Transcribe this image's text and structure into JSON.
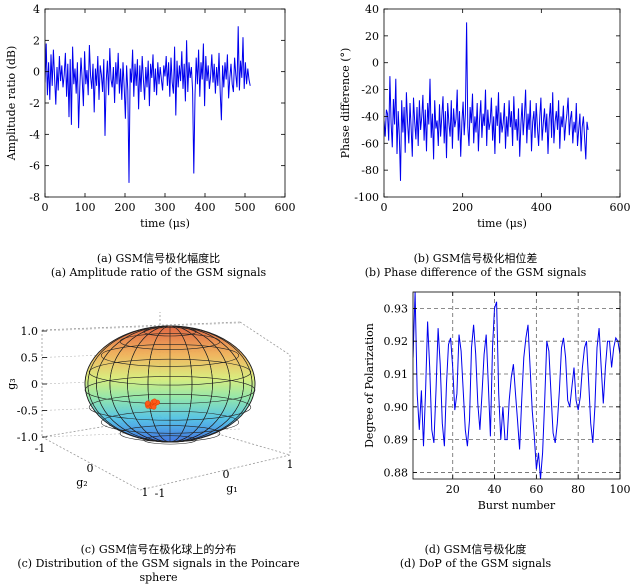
{
  "captions": {
    "a_cn": "(a) GSM信号极化幅度比",
    "a_en": "(a) Amplitude ratio of the GSM signals",
    "b_cn": "(b) GSM信号极化相位差",
    "b_en": "(b) Phase difference of the GSM signals",
    "c_cn": "(c) GSM信号在极化球上的分布",
    "c_en": "(c) Distribution of the GSM signals in the Poincare sphere",
    "d_cn": "(d) GSM信号极化度",
    "d_en": "(d) DoP of the GSM signals"
  },
  "line_color": "#0000ee",
  "chart_data": [
    {
      "id": "a",
      "type": "line",
      "xlabel": "time (μs)",
      "ylabel": "Amplitude ratio (dB)",
      "xlim": [
        0,
        600
      ],
      "ylim": [
        -8,
        4
      ],
      "xticks": [
        0,
        100,
        200,
        300,
        400,
        500,
        600
      ],
      "yticks": [
        -8,
        -6,
        -4,
        -2,
        0,
        2,
        4
      ],
      "grid": false,
      "x_start": 0,
      "x_step": 3,
      "values": [
        -0.7,
        1.8,
        -1.5,
        0.6,
        -1.8,
        1.1,
        -0.9,
        1.4,
        -0.4,
        -2.1,
        0.3,
        -1.2,
        1.0,
        -0.6,
        0.4,
        -1.0,
        -0.2,
        1.2,
        -1.6,
        0.5,
        -2.9,
        0.8,
        -3.4,
        1.6,
        -0.8,
        0.2,
        -1.4,
        0.6,
        -3.6,
        -1.0,
        0.9,
        -0.5,
        -2.2,
        1.3,
        -0.8,
        0.1,
        -1.5,
        1.7,
        -0.3,
        -1.1,
        0.5,
        -2.6,
        0.2,
        -0.9,
        1.0,
        -1.8,
        0.4,
        -0.2,
        -1.3,
        0.8,
        -4.1,
        -0.6,
        0.7,
        -1.5,
        1.5,
        -0.5,
        -1.0,
        0.3,
        -2.0,
        0.6,
        -0.8,
        1.2,
        -1.4,
        0.2,
        -1.8,
        0.6,
        -1.0,
        -3.0,
        0.4,
        -1.2,
        -7.1,
        0.2,
        -0.7,
        1.4,
        -1.6,
        0.5,
        -0.9,
        0.8,
        -2.4,
        0.4,
        -1.3,
        1.0,
        -0.5,
        -1.8,
        0.3,
        -1.0,
        0.7,
        -2.2,
        0.5,
        -0.4,
        1.1,
        -1.3,
        0.2,
        -1.5,
        0.6,
        -0.8,
        0.3,
        -0.5,
        -1.2,
        0.4,
        -0.3,
        1.0,
        -0.9,
        0.6,
        -1.6,
        0.9,
        -0.7,
        -1.4,
        1.6,
        -2.8,
        0.7,
        -1.0,
        0.4,
        -0.6,
        1.3,
        -1.1,
        0.5,
        -1.9,
        2.0,
        -1.3,
        0.6,
        -0.4,
        0.3,
        -1.2,
        -6.5,
        -1.5,
        0.9,
        -0.8,
        1.4,
        -1.6,
        0.6,
        -0.5,
        1.8,
        -2.2,
        1.0,
        -0.6,
        0.4,
        -1.1,
        -0.3,
        1.1,
        -0.7,
        0.5,
        -1.4,
        0.3,
        -0.9,
        1.2,
        -1.3,
        -3.1,
        0.4,
        -1.0,
        0.6,
        -0.5,
        1.1,
        -1.7,
        -0.4,
        0.5,
        -0.8,
        -1.3,
        0.9,
        -0.2,
        -1.0,
        2.9,
        -1.2,
        0.7,
        -0.4,
        2.2,
        -1.1,
        0.6,
        -0.8,
        0.2,
        -0.5,
        -0.9
      ]
    },
    {
      "id": "b",
      "type": "line",
      "xlabel": "time (μs)",
      "ylabel": "Phase difference (°)",
      "xlim": [
        0,
        600
      ],
      "ylim": [
        -100,
        40
      ],
      "xticks": [
        0,
        200,
        400,
        600
      ],
      "yticks": [
        -100,
        -80,
        -60,
        -40,
        -20,
        0,
        20,
        40
      ],
      "grid": false,
      "x_start": 0,
      "x_step": 3,
      "values": [
        -43,
        -55,
        -35,
        -38,
        -58,
        -10,
        -45,
        -63,
        -27,
        -46,
        -12,
        -68,
        -36,
        -54,
        -88,
        -28,
        -52,
        -33,
        -67,
        -22,
        -45,
        -60,
        -30,
        -48,
        -70,
        -26,
        -44,
        -57,
        -33,
        -62,
        -28,
        -50,
        -40,
        -24,
        -58,
        -35,
        -66,
        -30,
        -46,
        -12,
        -56,
        -38,
        -72,
        -28,
        -49,
        -43,
        -62,
        -31,
        -55,
        -40,
        -25,
        -60,
        -36,
        -71,
        -30,
        -45,
        -55,
        -28,
        -64,
        -34,
        -48,
        -42,
        -20,
        -58,
        -36,
        -70,
        -44,
        -29,
        -54,
        -38,
        30,
        -48,
        -62,
        -33,
        -45,
        -23,
        -60,
        -40,
        -52,
        -30,
        -66,
        -42,
        -28,
        -56,
        -38,
        -47,
        -20,
        -62,
        -35,
        -50,
        -44,
        -26,
        -58,
        -40,
        -68,
        -32,
        -47,
        -22,
        -60,
        -37,
        -52,
        -45,
        -30,
        -64,
        -40,
        -55,
        -28,
        -48,
        -36,
        -62,
        -25,
        -50,
        -42,
        -58,
        -34,
        -70,
        -46,
        -30,
        -54,
        -40,
        -20,
        -60,
        -38,
        -50,
        -28,
        -66,
        -44,
        -36,
        -56,
        -30,
        -48,
        -62,
        -40,
        -26,
        -58,
        -45,
        -34,
        -52,
        -38,
        -68,
        -42,
        -30,
        -56,
        -22,
        -60,
        -44,
        -36,
        -50,
        -28,
        -64,
        -40,
        -48,
        -32,
        -58,
        -46,
        -38,
        -26,
        -54,
        -42,
        -36,
        -60,
        -44,
        -52,
        -30,
        -62,
        -50,
        -38,
        -66,
        -48,
        -40,
        -56,
        -72,
        -44,
        -50
      ]
    },
    {
      "id": "c",
      "type": "scatter",
      "projection": "3d-sphere",
      "xlabel": "g₁",
      "ylabel": "g₂",
      "zlabel": "g₃",
      "zticks": [
        -1.0,
        -0.5,
        0,
        0.5,
        1.0
      ],
      "zlim": [
        -1.0,
        1.0
      ],
      "x_ticks": [
        -1,
        0,
        1
      ],
      "y_ticks": [
        -1,
        0,
        1
      ],
      "grid": true,
      "points": [
        [
          0.15,
          -0.55,
          -0.33
        ],
        [
          0.18,
          -0.58,
          -0.3
        ],
        [
          0.12,
          -0.52,
          -0.36
        ],
        [
          0.2,
          -0.6,
          -0.28
        ],
        [
          0.1,
          -0.56,
          -0.34
        ],
        [
          0.16,
          -0.5,
          -0.31
        ],
        [
          0.22,
          -0.54,
          -0.29
        ],
        [
          0.14,
          -0.62,
          -0.35
        ],
        [
          0.19,
          -0.57,
          -0.37
        ],
        [
          0.11,
          -0.59,
          -0.32
        ],
        [
          0.17,
          -0.53,
          -0.27
        ],
        [
          0.13,
          -0.61,
          -0.3
        ]
      ]
    },
    {
      "id": "d",
      "type": "line",
      "xlabel": "Burst number",
      "ylabel": "Degree of Polarization",
      "xlim": [
        1,
        100
      ],
      "ylim": [
        0.878,
        0.935
      ],
      "xticks": [
        20,
        40,
        60,
        80,
        100
      ],
      "yticks": [
        0.88,
        0.89,
        0.9,
        0.91,
        0.92,
        0.93
      ],
      "grid": true,
      "x": [
        1,
        2,
        3,
        4,
        5,
        6,
        7,
        8,
        9,
        10,
        11,
        12,
        13,
        14,
        15,
        16,
        17,
        18,
        19,
        20,
        21,
        22,
        23,
        24,
        25,
        26,
        27,
        28,
        29,
        30,
        31,
        32,
        33,
        34,
        35,
        36,
        37,
        38,
        39,
        40,
        41,
        42,
        43,
        44,
        45,
        46,
        47,
        48,
        49,
        50,
        51,
        52,
        53,
        54,
        55,
        56,
        57,
        58,
        59,
        60,
        61,
        62,
        63,
        64,
        65,
        66,
        67,
        68,
        69,
        70,
        71,
        72,
        73,
        74,
        75,
        76,
        77,
        78,
        79,
        80,
        81,
        82,
        83,
        84,
        85,
        86,
        87,
        88,
        89,
        90,
        91,
        92,
        93,
        94,
        95,
        96,
        97,
        98,
        99,
        100
      ],
      "values": [
        0.915,
        0.935,
        0.904,
        0.893,
        0.905,
        0.888,
        0.904,
        0.926,
        0.912,
        0.893,
        0.889,
        0.905,
        0.924,
        0.913,
        0.895,
        0.888,
        0.907,
        0.919,
        0.921,
        0.912,
        0.899,
        0.904,
        0.922,
        0.917,
        0.905,
        0.893,
        0.888,
        0.896,
        0.918,
        0.925,
        0.916,
        0.901,
        0.893,
        0.904,
        0.916,
        0.922,
        0.907,
        0.891,
        0.918,
        0.93,
        0.932,
        0.904,
        0.89,
        0.9,
        0.89,
        0.89,
        0.902,
        0.909,
        0.913,
        0.904,
        0.896,
        0.887,
        0.902,
        0.915,
        0.921,
        0.925,
        0.912,
        0.899,
        0.891,
        0.881,
        0.886,
        0.878,
        0.886,
        0.902,
        0.92,
        0.917,
        0.904,
        0.892,
        0.889,
        0.895,
        0.905,
        0.918,
        0.921,
        0.915,
        0.902,
        0.9,
        0.906,
        0.912,
        0.902,
        0.899,
        0.903,
        0.912,
        0.918,
        0.92,
        0.908,
        0.895,
        0.889,
        0.9,
        0.918,
        0.924,
        0.912,
        0.901,
        0.912,
        0.92,
        0.92,
        0.912,
        0.918,
        0.921,
        0.92,
        0.916
      ]
    }
  ]
}
